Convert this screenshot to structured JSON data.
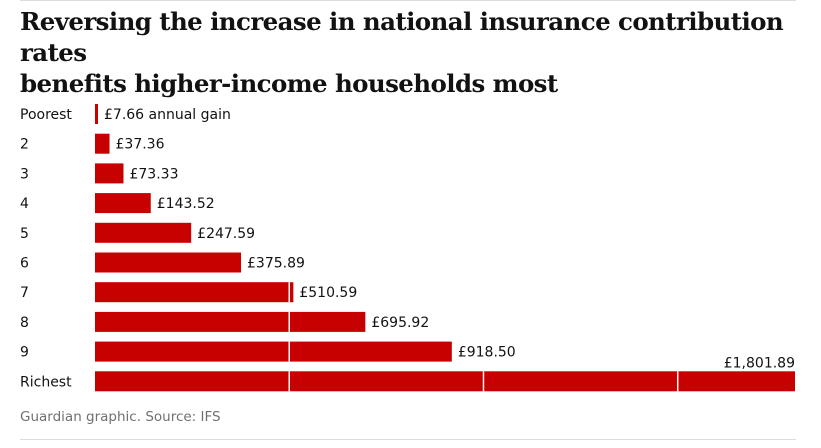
{
  "header": {
    "title_line1": "Reversing the increase in national insurance contribution rates",
    "title_line2": "benefits higher-income households most"
  },
  "footer": {
    "source": "Guardian graphic. Source: IFS"
  },
  "colors": {
    "bar": "#c70000",
    "gridline": "#ffffff",
    "text": "#121212",
    "muted": "#707070"
  },
  "chart_data": {
    "type": "bar",
    "orientation": "horizontal",
    "title": "Reversing the increase in national insurance contribution rates benefits higher-income households most",
    "xlabel": "",
    "ylabel": "",
    "xlim": [
      0,
      1801.89
    ],
    "grid_interval": 500,
    "categories": [
      "Poorest",
      "2",
      "3",
      "4",
      "5",
      "6",
      "7",
      "8",
      "9",
      "Richest"
    ],
    "values": [
      7.66,
      37.36,
      73.33,
      143.52,
      247.59,
      375.89,
      510.59,
      695.92,
      918.5,
      1801.89
    ],
    "labels": [
      "£7.66 annual gain",
      "£37.36",
      "£73.33",
      "£143.52",
      "£247.59",
      "£375.89",
      "£510.59",
      "£695.92",
      "£918.50",
      "£1,801.89"
    ],
    "series": [
      {
        "name": "Annual gain",
        "values": [
          7.66,
          37.36,
          73.33,
          143.52,
          247.59,
          375.89,
          510.59,
          695.92,
          918.5,
          1801.89
        ]
      }
    ]
  }
}
